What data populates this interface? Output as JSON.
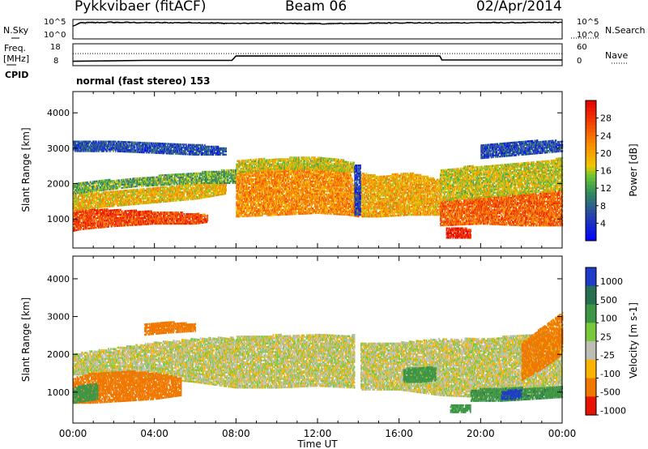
{
  "header": {
    "title": "Pykkvibaer (fitACF)",
    "beam": "Beam 06",
    "date": "02/Apr/2014"
  },
  "nsky_panel": {
    "left_label": "N.Sky",
    "left_ticks": [
      "10^5",
      "10^0"
    ],
    "right_label": "N.Search",
    "right_ticks": [
      "10^5",
      "10^0"
    ]
  },
  "freq_panel": {
    "left_label_1": "Freq.",
    "left_label_2": "[MHz]",
    "left_ticks": [
      "18",
      "8"
    ],
    "right_label": "Nave",
    "right_ticks": [
      "60",
      "0"
    ]
  },
  "cpid": {
    "label": "CPID",
    "mode_text": "normal (fast stereo) 153"
  },
  "chart_data": [
    {
      "type": "line",
      "panel": "noise",
      "series": [
        {
          "name": "N.Sky",
          "x_hours": [
            0,
            0.4,
            2,
            4,
            6,
            8,
            10,
            12,
            14,
            16,
            18,
            20,
            22,
            24
          ],
          "log10_noise": [
            3.6,
            4.6,
            4.7,
            4.6,
            4.6,
            4.4,
            4.5,
            4.3,
            4.4,
            4.6,
            4.5,
            4.6,
            4.6,
            4.7
          ]
        },
        {
          "name": "N.Search",
          "x_hours": [
            0,
            0.4,
            2,
            4,
            6,
            8,
            10,
            12,
            14,
            16,
            18,
            20,
            22,
            24
          ],
          "log10_noise": [
            3.5,
            4.4,
            4.5,
            4.5,
            4.4,
            4.3,
            4.3,
            4.2,
            4.3,
            4.4,
            4.4,
            4.5,
            4.5,
            4.6
          ]
        }
      ],
      "ylim": [
        0,
        5.5
      ]
    },
    {
      "type": "line",
      "panel": "frequency",
      "series": [
        {
          "name": "Freq.",
          "x_hours": [
            0,
            3.5,
            7.8,
            8,
            18,
            18.1,
            24
          ],
          "values_mhz": [
            10,
            10.4,
            10.4,
            12.4,
            12.4,
            10.6,
            10.6
          ]
        },
        {
          "name": "Nave",
          "x_hours": [
            0,
            24
          ],
          "values": [
            33,
            33
          ]
        }
      ],
      "ylim_mhz": [
        8,
        18
      ],
      "ylim_nave": [
        0,
        60
      ]
    },
    {
      "type": "heatmap",
      "panel": "power",
      "xlabel": "",
      "ylabel": "Slant Range [km]",
      "xlim_hours": [
        0,
        24
      ],
      "ylim_km": [
        180,
        4600
      ],
      "y_ticks": [
        1000,
        2000,
        3000,
        4000
      ],
      "colorbar": {
        "label": "Power [dB]",
        "ticks": [
          "4",
          "8",
          "12",
          "16",
          "20",
          "24",
          "28"
        ],
        "range": [
          0,
          32
        ]
      },
      "bands": [
        {
          "t": [
            0,
            0.5,
            2,
            4,
            6,
            6.6
          ],
          "r_lo": [
            650,
            700,
            780,
            850,
            850,
            900
          ],
          "r_hi": [
            1250,
            1300,
            1250,
            1200,
            1150,
            1100
          ],
          "level": 27
        },
        {
          "t": [
            0,
            2,
            4,
            6,
            7.5
          ],
          "r_lo": [
            1250,
            1350,
            1450,
            1550,
            1700
          ],
          "r_hi": [
            1700,
            1800,
            1900,
            2000,
            2000
          ],
          "level": 19
        },
        {
          "t": [
            0,
            3,
            6,
            8
          ],
          "r_lo": [
            1700,
            1900,
            2000,
            2000
          ],
          "r_hi": [
            2000,
            2150,
            2300,
            2400
          ],
          "level": 13
        },
        {
          "t": [
            8,
            10,
            12,
            13.5,
            14
          ],
          "r_lo": [
            1050,
            1100,
            1150,
            1100,
            1050
          ],
          "r_hi": [
            2300,
            2450,
            2500,
            2400,
            1700
          ],
          "level": 22
        },
        {
          "t": [
            8,
            10,
            12,
            13.8
          ],
          "r_lo": [
            2300,
            2400,
            2400,
            2300
          ],
          "r_hi": [
            2650,
            2700,
            2750,
            2600
          ],
          "level": 17
        },
        {
          "t": [
            14.1,
            15,
            16.5,
            18
          ],
          "r_lo": [
            1050,
            1050,
            1100,
            1100
          ],
          "r_hi": [
            2300,
            2200,
            2300,
            2100
          ],
          "level": 20
        },
        {
          "t": [
            18,
            20,
            22,
            24
          ],
          "r_lo": [
            800,
            850,
            800,
            800
          ],
          "r_hi": [
            1500,
            1600,
            1700,
            1800
          ],
          "level": 25
        },
        {
          "t": [
            18,
            20,
            22,
            24
          ],
          "r_lo": [
            1500,
            1600,
            1700,
            1800
          ],
          "r_hi": [
            2400,
            2500,
            2600,
            2700
          ],
          "level": 17
        },
        {
          "t": [
            0,
            2,
            6,
            7.5
          ],
          "r_lo": [
            2900,
            2900,
            2800,
            2800
          ],
          "r_hi": [
            3200,
            3200,
            3100,
            3000
          ],
          "level": 6
        },
        {
          "t": [
            20,
            22,
            24
          ],
          "r_lo": [
            2700,
            2800,
            2900
          ],
          "r_hi": [
            3100,
            3200,
            3200
          ],
          "level": 6
        },
        {
          "t": [
            18.3,
            19,
            19.5
          ],
          "r_lo": [
            450,
            450,
            450
          ],
          "r_hi": [
            750,
            750,
            700
          ],
          "level": 30
        },
        {
          "t": [
            13.8,
            14.1
          ],
          "r_lo": [
            1100,
            1100
          ],
          "r_hi": [
            2500,
            2500
          ],
          "level": 5
        }
      ]
    },
    {
      "type": "heatmap",
      "panel": "velocity",
      "xlabel": "Time UT",
      "ylabel": "Slant Range [km]",
      "xlim_hours": [
        0,
        24
      ],
      "ylim_km": [
        180,
        4600
      ],
      "x_ticks": [
        "00:00",
        "04:00",
        "08:00",
        "12:00",
        "16:00",
        "20:00",
        "00:00"
      ],
      "y_ticks": [
        1000,
        2000,
        3000,
        4000
      ],
      "colorbar": {
        "label": "Velocity [m s-1]",
        "ticks": [
          "1000",
          "500",
          "100",
          "25",
          "-25",
          "-100",
          "-500",
          "-1000"
        ],
        "range": [
          -1250,
          1250
        ]
      },
      "bands": [
        {
          "t": [
            0,
            2,
            4,
            6,
            8,
            10,
            12,
            13.8
          ],
          "r_lo": [
            1450,
            1400,
            1350,
            1250,
            1100,
            1100,
            1150,
            1100
          ],
          "r_hi": [
            2000,
            2150,
            2300,
            2400,
            2450,
            2500,
            2500,
            2500
          ],
          "velocity": 0
        },
        {
          "t": [
            14.1,
            16,
            18,
            20,
            22,
            24
          ],
          "r_lo": [
            1050,
            1050,
            900,
            850,
            900,
            950
          ],
          "r_hi": [
            2300,
            2300,
            2400,
            2400,
            2500,
            2600
          ],
          "velocity": 0
        },
        {
          "t": [
            0,
            1,
            2.5,
            4,
            5.3
          ],
          "r_lo": [
            700,
            700,
            750,
            800,
            900
          ],
          "r_hi": [
            1350,
            1500,
            1550,
            1500,
            1350
          ],
          "velocity": -400
        },
        {
          "t": [
            0,
            0.6,
            1.2
          ],
          "r_lo": [
            700,
            750,
            800
          ],
          "r_hi": [
            1100,
            1200,
            1200
          ],
          "velocity": 150
        },
        {
          "t": [
            3.5,
            4.5,
            6
          ],
          "r_lo": [
            2500,
            2550,
            2600
          ],
          "r_hi": [
            2800,
            2850,
            2800
          ],
          "velocity": -300
        },
        {
          "t": [
            19.5,
            21,
            22.5,
            24
          ],
          "r_lo": [
            750,
            750,
            800,
            850
          ],
          "r_hi": [
            1050,
            1100,
            1100,
            1150
          ],
          "velocity": 250
        },
        {
          "t": [
            16.2,
            17,
            17.8
          ],
          "r_lo": [
            1250,
            1250,
            1300
          ],
          "r_hi": [
            1600,
            1650,
            1650
          ],
          "velocity": 200
        },
        {
          "t": [
            21,
            21.6,
            22
          ],
          "r_lo": [
            800,
            800,
            850
          ],
          "r_hi": [
            1000,
            1050,
            1050
          ],
          "velocity": 800
        },
        {
          "t": [
            22,
            23,
            24
          ],
          "r_lo": [
            1300,
            1600,
            2000
          ],
          "r_hi": [
            2300,
            2700,
            3100
          ],
          "velocity": -150
        },
        {
          "t": [
            18.5,
            19.5
          ],
          "r_lo": [
            450,
            450
          ],
          "r_hi": [
            650,
            650
          ],
          "velocity": 150
        }
      ]
    }
  ]
}
